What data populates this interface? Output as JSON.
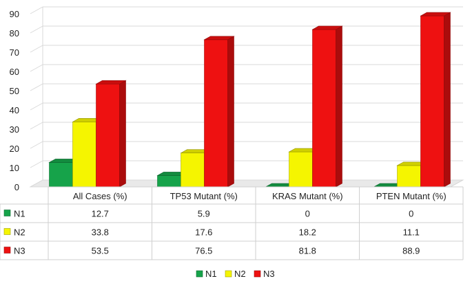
{
  "chart_data": {
    "type": "bar",
    "title": "",
    "xlabel": "",
    "ylabel": "",
    "ylim": [
      0,
      90
    ],
    "yticks": [
      0,
      10,
      20,
      30,
      40,
      50,
      60,
      70,
      80,
      90
    ],
    "grid": true,
    "legend_position": "bottom",
    "categories": [
      "All Cases (%)",
      "TP53 Mutant (%)",
      "KRAS Mutant (%)",
      "PTEN Mutant (%)"
    ],
    "series": [
      {
        "name": "N1",
        "color": "#16a34a",
        "values": [
          12.7,
          5.9,
          0,
          0
        ]
      },
      {
        "name": "N2",
        "color": "#f5f500",
        "values": [
          33.8,
          17.6,
          18.2,
          11.1
        ]
      },
      {
        "name": "N3",
        "color": "#ee1111",
        "values": [
          53.5,
          76.5,
          81.8,
          88.9
        ]
      }
    ],
    "data_table": {
      "shown": true,
      "cells": [
        [
          "12.7",
          "5.9",
          "0",
          "0"
        ],
        [
          "33.8",
          "17.6",
          "18.2",
          "11.1"
        ],
        [
          "53.5",
          "76.5",
          "81.8",
          "88.9"
        ]
      ]
    }
  }
}
